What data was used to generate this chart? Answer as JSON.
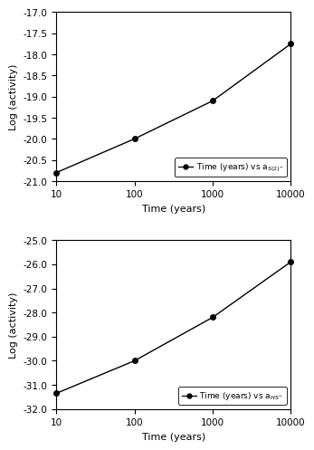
{
  "top": {
    "x": [
      10,
      100,
      1000,
      10000
    ],
    "y": [
      -20.8,
      -20.0,
      -19.1,
      -17.75
    ],
    "xlim": [
      10,
      10000
    ],
    "ylim": [
      -21.0,
      -17.0
    ],
    "yticks": [
      -21.0,
      -20.5,
      -20.0,
      -19.5,
      -19.0,
      -18.5,
      -18.0,
      -17.5,
      -17.0
    ],
    "ylabel": "Log (activity)",
    "xlabel": "Time (years)",
    "legend_text": "Time (years) vs a$_{S(2)^{-}}$"
  },
  "bottom": {
    "x": [
      10,
      100,
      1000,
      10000
    ],
    "y": [
      -31.35,
      -30.0,
      -28.2,
      -25.9
    ],
    "xlim": [
      10,
      10000
    ],
    "ylim": [
      -32,
      -25
    ],
    "yticks": [
      -32,
      -31,
      -30,
      -29,
      -28,
      -27,
      -26,
      -25
    ],
    "ylabel": "Log (activity)",
    "xlabel": "Time (years)",
    "legend_text": "Time (years) vs a$_{HS^{-}}$"
  },
  "line_color": "#000000",
  "marker": "o",
  "marker_size": 4,
  "marker_color": "#000000",
  "figure_facecolor": "#ffffff",
  "fontsize_label": 8,
  "fontsize_tick": 7.5,
  "fontsize_legend": 6.5
}
